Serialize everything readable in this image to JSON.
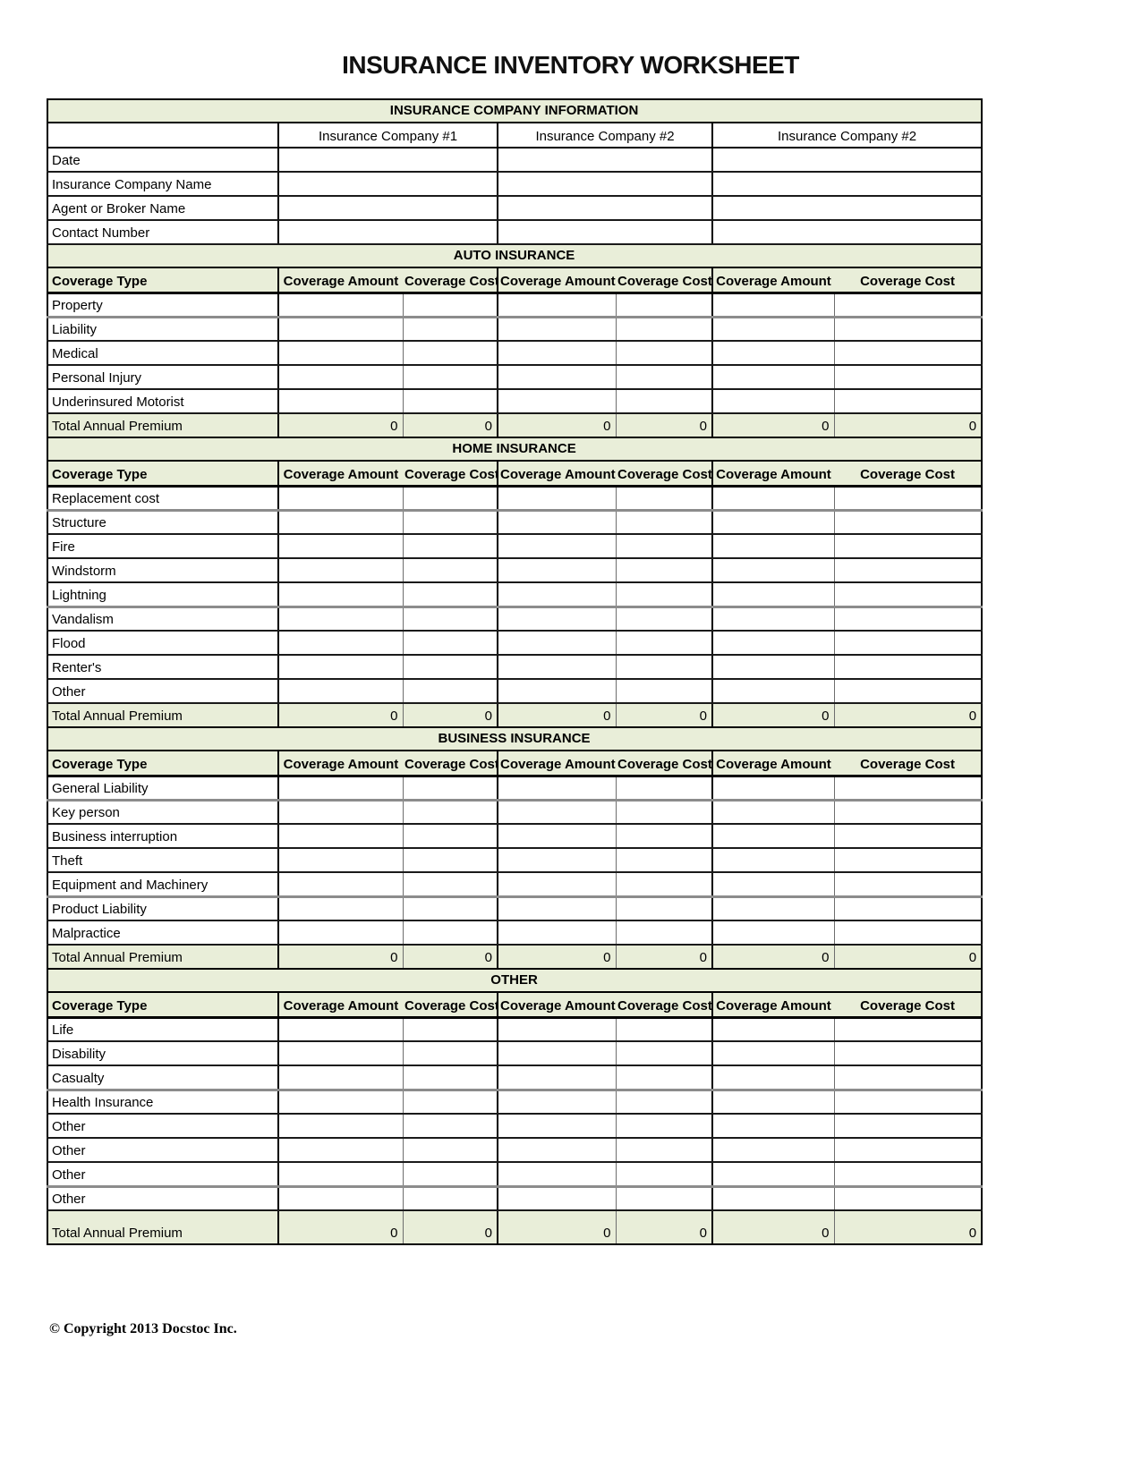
{
  "title": "INSURANCE INVENTORY WORKSHEET",
  "copyright": "© Copyright 2013 Docstoc Inc.",
  "colors": {
    "header_fill": "#e9eed9"
  },
  "info": {
    "header": "INSURANCE COMPANY INFORMATION",
    "companies": [
      "Insurance Company #1",
      "Insurance Company #2",
      "Insurance Company #2"
    ],
    "row_labels": [
      "Date",
      "Insurance Company Name",
      "Agent or Broker Name",
      "Contact Number"
    ]
  },
  "column_headers": {
    "coverage_type": "Coverage Type",
    "coverage_amount": "Coverage Amount",
    "coverage_cost": "Coverage Cost"
  },
  "total_label": "Total Annual Premium",
  "sections": [
    {
      "title": "AUTO INSURANCE",
      "rows": [
        "Property",
        "Liability",
        "Medical",
        "Personal Injury",
        "Underinsured Motorist"
      ],
      "total_values": [
        "0",
        "0",
        "0",
        "0",
        "0",
        "0"
      ]
    },
    {
      "title": "HOME INSURANCE",
      "rows": [
        "Replacement cost",
        "Structure",
        "Fire",
        "Windstorm",
        "Lightning",
        "Vandalism",
        "Flood",
        "Renter's",
        "Other"
      ],
      "total_values": [
        "0",
        "0",
        "0",
        "0",
        "0",
        "0"
      ]
    },
    {
      "title": "BUSINESS INSURANCE",
      "rows": [
        "General Liability",
        "Key person",
        "Business interruption",
        "Theft",
        "Equipment and Machinery",
        "Product Liability",
        "Malpractice"
      ],
      "total_values": [
        "0",
        "0",
        "0",
        "0",
        "0",
        "0"
      ]
    },
    {
      "title": "OTHER",
      "rows": [
        "Life",
        "Disability",
        "Casualty",
        "Health Insurance",
        "Other",
        "Other",
        "Other",
        "Other"
      ],
      "total_values": [
        "0",
        "0",
        "0",
        "0",
        "0",
        "0"
      ]
    }
  ]
}
